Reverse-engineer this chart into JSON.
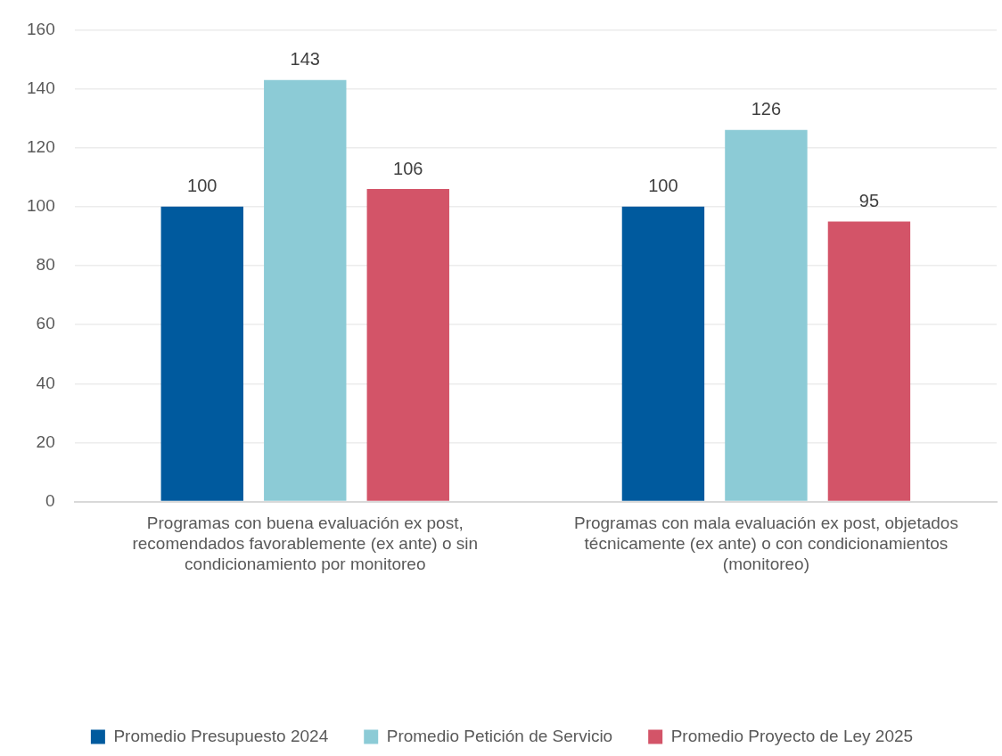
{
  "chart_data": {
    "type": "bar",
    "categories": [
      "Programas con buena evaluación ex post, recomendados favorablemente (ex ante) o sin condicionamiento por monitoreo",
      "Programas con mala evaluación ex post, objetados técnicamente (ex ante) o con condicionamientos (monitoreo)"
    ],
    "series": [
      {
        "name": "Promedio Presupuesto 2024",
        "color": "#005a9e",
        "values": [
          100,
          100
        ]
      },
      {
        "name": "Promedio Petición de Servicio",
        "color": "#8ccbd6",
        "values": [
          143,
          126
        ]
      },
      {
        "name": "Promedio Proyecto de Ley 2025",
        "color": "#d35468",
        "values": [
          106,
          95
        ]
      }
    ],
    "ylim": [
      0,
      160
    ],
    "yticks": [
      0,
      20,
      40,
      60,
      80,
      100,
      120,
      140,
      160
    ],
    "grid": "y",
    "legend": "bottom",
    "data_labels": true
  }
}
